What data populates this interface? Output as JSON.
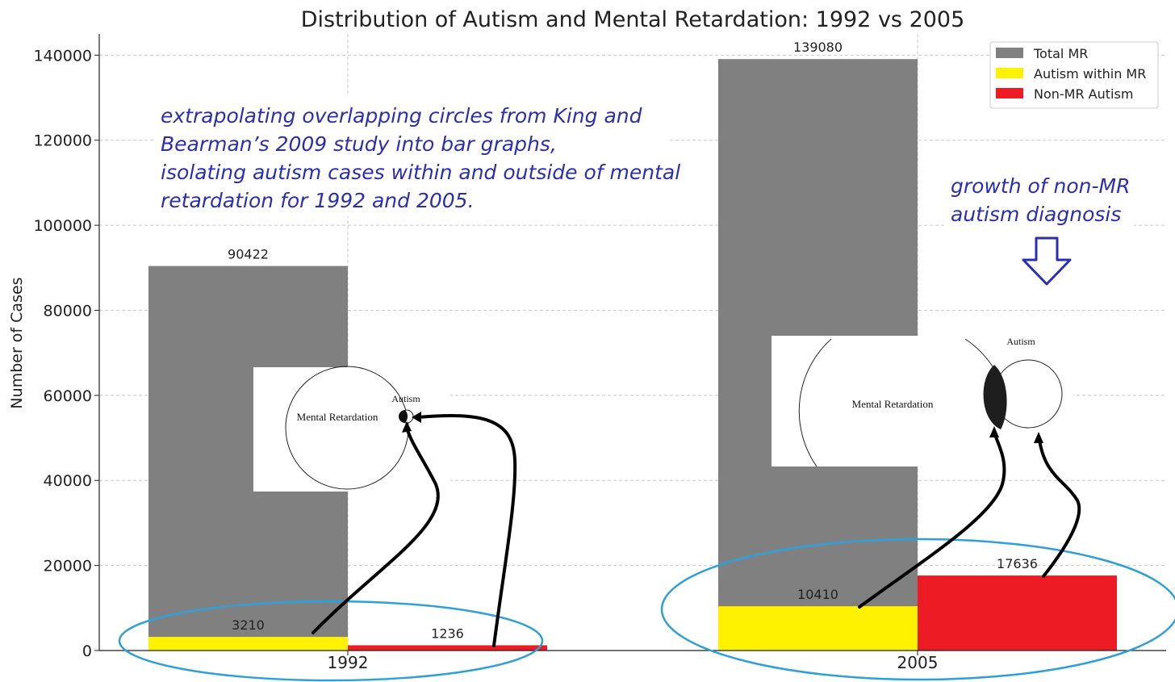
{
  "chart_data": {
    "type": "bar",
    "title": "Distribution of Autism and Mental Retardation: 1992 vs 2005",
    "ylabel": "Number of Cases",
    "xlabel": "",
    "ylim": [
      0,
      145000
    ],
    "yticks": [
      0,
      20000,
      40000,
      60000,
      80000,
      100000,
      120000,
      140000
    ],
    "categories": [
      "1992",
      "2005"
    ],
    "grid": true,
    "legend_position": "top-right",
    "series": [
      {
        "name": "Total MR",
        "values": [
          90422,
          139080
        ],
        "color": "#808080"
      },
      {
        "name": "Autism within MR",
        "values": [
          3210,
          10410
        ],
        "color": "#fff200"
      },
      {
        "name": "Non-MR Autism",
        "values": [
          1236,
          17636
        ],
        "color": "#ed1c24"
      }
    ],
    "annotations": {
      "study_note": [
        "extrapolating overlapping circles from King and",
        "Bearman’s 2009 study into bar graphs,",
        "isolating autism cases within and outside of mental",
        "retardation for 1992 and 2005."
      ],
      "growth_note": [
        "growth of non-MR",
        "autism diagnosis"
      ],
      "venn_1992": {
        "large_circle": "Mental Retardation",
        "small_circle": "Autism"
      },
      "venn_2005": {
        "large_circle": "Mental Retardation",
        "small_circle": "Autism"
      }
    }
  }
}
